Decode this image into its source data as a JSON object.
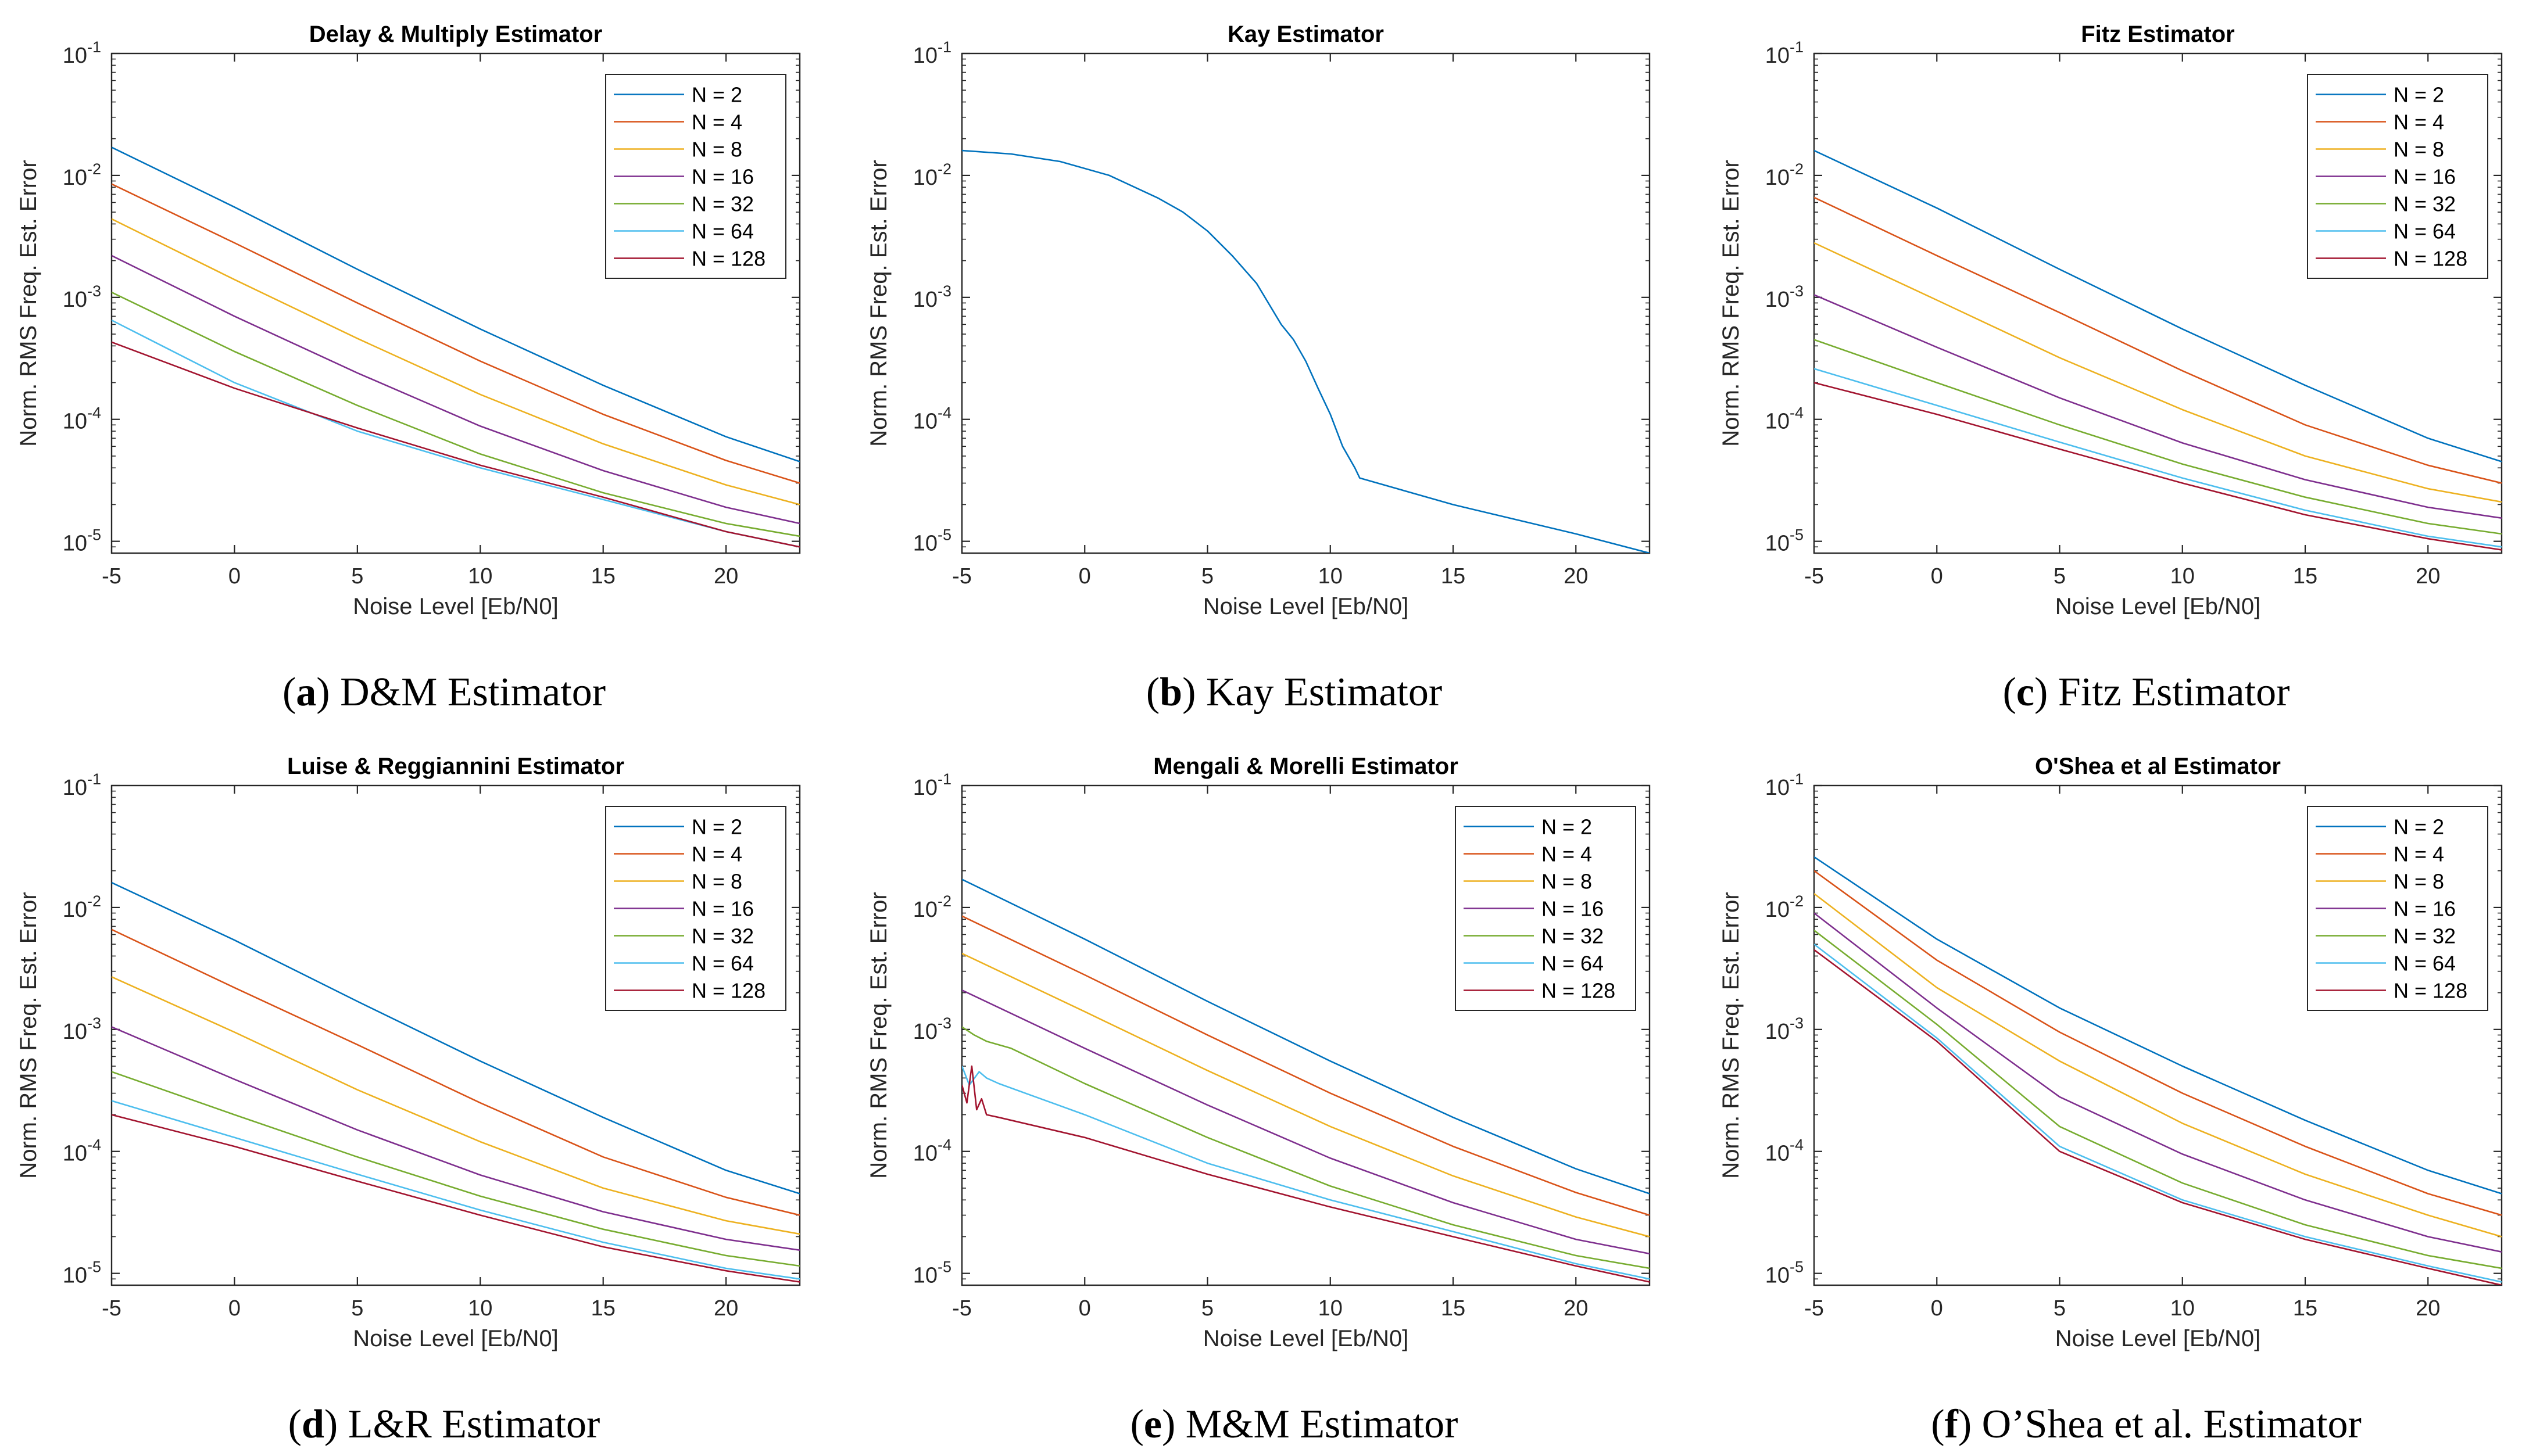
{
  "chart_data": [
    {
      "panel": "a",
      "caption_letter": "a",
      "caption_text": "D&M Estimator",
      "type": "line",
      "title": "Delay & Multiply Estimator",
      "xlabel": "Noise Level [Eb/N0]",
      "ylabel": "Norm. RMS Freq. Est. Error",
      "xlim": [
        -5,
        23
      ],
      "ylim": [
        8e-06,
        0.1
      ],
      "yscale": "log",
      "xticks": [
        -5,
        0,
        5,
        10,
        15,
        20
      ],
      "yticks": [
        -5,
        -4,
        -3,
        -2,
        -1
      ],
      "legend": "top-right",
      "series": [
        {
          "name": "N = 2",
          "color": "#0072BD",
          "x": [
            -5,
            0,
            5,
            10,
            15,
            20,
            23
          ],
          "y": [
            0.017,
            0.0055,
            0.0017,
            0.00055,
            0.00019,
            7.2e-05,
            4.5e-05
          ]
        },
        {
          "name": "N = 4",
          "color": "#D95319",
          "x": [
            -5,
            0,
            5,
            10,
            15,
            20,
            23
          ],
          "y": [
            0.0085,
            0.0028,
            0.0009,
            0.0003,
            0.00011,
            4.6e-05,
            3e-05
          ]
        },
        {
          "name": "N = 8",
          "color": "#EDB120",
          "x": [
            -5,
            0,
            5,
            10,
            15,
            20,
            23
          ],
          "y": [
            0.0044,
            0.0014,
            0.00046,
            0.00016,
            6.3e-05,
            2.9e-05,
            2e-05
          ]
        },
        {
          "name": "N = 16",
          "color": "#7E2F8E",
          "x": [
            -5,
            0,
            5,
            10,
            15,
            20,
            23
          ],
          "y": [
            0.0022,
            0.0007,
            0.00024,
            8.8e-05,
            3.8e-05,
            1.9e-05,
            1.4e-05
          ]
        },
        {
          "name": "N = 32",
          "color": "#77AC30",
          "x": [
            -5,
            0,
            5,
            10,
            15,
            20,
            23
          ],
          "y": [
            0.0011,
            0.00036,
            0.00013,
            5.2e-05,
            2.5e-05,
            1.4e-05,
            1.1e-05
          ]
        },
        {
          "name": "N = 64",
          "color": "#4DBEEE",
          "x": [
            -5,
            0,
            5,
            10,
            15,
            20,
            23
          ],
          "y": [
            0.00065,
            0.0002,
            8e-05,
            4e-05,
            2.2e-05,
            1.2e-05,
            9e-06
          ]
        },
        {
          "name": "N = 128",
          "color": "#A2142F",
          "x": [
            -5,
            0,
            5,
            10,
            15,
            20,
            23
          ],
          "y": [
            0.00043,
            0.00018,
            8.5e-05,
            4.2e-05,
            2.3e-05,
            1.2e-05,
            9e-06
          ]
        }
      ]
    },
    {
      "panel": "b",
      "caption_letter": "b",
      "caption_text": "Kay Estimator",
      "type": "line",
      "title": "Kay Estimator",
      "xlabel": "Noise Level [Eb/N0]",
      "ylabel": "Norm. RMS Freq. Est. Error",
      "xlim": [
        -5,
        23
      ],
      "ylim": [
        8e-06,
        0.1
      ],
      "yscale": "log",
      "xticks": [
        -5,
        0,
        5,
        10,
        15,
        20
      ],
      "yticks": [
        -5,
        -4,
        -3,
        -2,
        -1
      ],
      "legend": "none",
      "series": [
        {
          "name": "Kay",
          "color": "#0072BD",
          "x": [
            -5,
            -3,
            -1,
            1,
            3,
            4,
            5,
            6,
            7,
            8,
            8.5,
            9,
            9.5,
            10,
            10.5,
            11,
            11.2,
            15,
            20,
            23
          ],
          "y": [
            0.016,
            0.015,
            0.013,
            0.01,
            0.0065,
            0.005,
            0.0035,
            0.0022,
            0.0013,
            0.0006,
            0.00045,
            0.0003,
            0.00018,
            0.00011,
            6e-05,
            4e-05,
            3.3e-05,
            2e-05,
            1.15e-05,
            8e-06
          ]
        }
      ]
    },
    {
      "panel": "c",
      "caption_letter": "c",
      "caption_text": "Fitz Estimator",
      "type": "line",
      "title": "Fitz Estimator",
      "xlabel": "Noise Level [Eb/N0]",
      "ylabel": "Norm. RMS Freq. Est. Error",
      "xlim": [
        -5,
        23
      ],
      "ylim": [
        8e-06,
        0.1
      ],
      "yscale": "log",
      "xticks": [
        -5,
        0,
        5,
        10,
        15,
        20
      ],
      "yticks": [
        -5,
        -4,
        -3,
        -2,
        -1
      ],
      "legend": "top-right",
      "series": [
        {
          "name": "N = 2",
          "color": "#0072BD",
          "x": [
            -5,
            0,
            5,
            10,
            15,
            20,
            23
          ],
          "y": [
            0.016,
            0.0054,
            0.0017,
            0.00055,
            0.00019,
            7e-05,
            4.5e-05
          ]
        },
        {
          "name": "N = 4",
          "color": "#D95319",
          "x": [
            -5,
            0,
            5,
            10,
            15,
            20,
            23
          ],
          "y": [
            0.0066,
            0.0022,
            0.00075,
            0.00025,
            9e-05,
            4.2e-05,
            3e-05
          ]
        },
        {
          "name": "N = 8",
          "color": "#EDB120",
          "x": [
            -5,
            0,
            5,
            10,
            15,
            20,
            23
          ],
          "y": [
            0.0028,
            0.00095,
            0.00032,
            0.00012,
            5e-05,
            2.7e-05,
            2.1e-05
          ]
        },
        {
          "name": "N = 16",
          "color": "#7E2F8E",
          "x": [
            -5,
            0,
            5,
            10,
            15,
            20,
            23
          ],
          "y": [
            0.00105,
            0.00039,
            0.00015,
            6.4e-05,
            3.2e-05,
            1.9e-05,
            1.55e-05
          ]
        },
        {
          "name": "N = 32",
          "color": "#77AC30",
          "x": [
            -5,
            0,
            5,
            10,
            15,
            20,
            23
          ],
          "y": [
            0.00045,
            0.0002,
            9e-05,
            4.3e-05,
            2.3e-05,
            1.4e-05,
            1.15e-05
          ]
        },
        {
          "name": "N = 64",
          "color": "#4DBEEE",
          "x": [
            -5,
            0,
            5,
            10,
            15,
            20,
            23
          ],
          "y": [
            0.00026,
            0.00013,
            6.5e-05,
            3.3e-05,
            1.8e-05,
            1.1e-05,
            9e-06
          ]
        },
        {
          "name": "N = 128",
          "color": "#A2142F",
          "x": [
            -5,
            0,
            5,
            10,
            15,
            20,
            23
          ],
          "y": [
            0.0002,
            0.00011,
            5.7e-05,
            3e-05,
            1.65e-05,
            1.05e-05,
            8.5e-06
          ]
        }
      ]
    },
    {
      "panel": "d",
      "caption_letter": "d",
      "caption_text": "L&R Estimator",
      "type": "line",
      "title": "Luise & Reggiannini Estimator",
      "xlabel": "Noise Level [Eb/N0]",
      "ylabel": "Norm. RMS Freq. Est. Error",
      "xlim": [
        -5,
        23
      ],
      "ylim": [
        8e-06,
        0.1
      ],
      "yscale": "log",
      "xticks": [
        -5,
        0,
        5,
        10,
        15,
        20
      ],
      "yticks": [
        -5,
        -4,
        -3,
        -2,
        -1
      ],
      "legend": "top-right",
      "series": [
        {
          "name": "N = 2",
          "color": "#0072BD",
          "x": [
            -5,
            0,
            5,
            10,
            15,
            20,
            23
          ],
          "y": [
            0.016,
            0.0054,
            0.0017,
            0.00055,
            0.00019,
            7e-05,
            4.5e-05
          ]
        },
        {
          "name": "N = 4",
          "color": "#D95319",
          "x": [
            -5,
            0,
            5,
            10,
            15,
            20,
            23
          ],
          "y": [
            0.0066,
            0.0022,
            0.00075,
            0.00025,
            9e-05,
            4.2e-05,
            3e-05
          ]
        },
        {
          "name": "N = 8",
          "color": "#EDB120",
          "x": [
            -5,
            0,
            5,
            10,
            15,
            20,
            23
          ],
          "y": [
            0.0027,
            0.00095,
            0.00032,
            0.00012,
            5e-05,
            2.7e-05,
            2.1e-05
          ]
        },
        {
          "name": "N = 16",
          "color": "#7E2F8E",
          "x": [
            -5,
            0,
            5,
            10,
            15,
            20,
            23
          ],
          "y": [
            0.00105,
            0.00039,
            0.00015,
            6.4e-05,
            3.2e-05,
            1.9e-05,
            1.55e-05
          ]
        },
        {
          "name": "N = 32",
          "color": "#77AC30",
          "x": [
            -5,
            0,
            5,
            10,
            15,
            20,
            23
          ],
          "y": [
            0.00045,
            0.0002,
            9e-05,
            4.3e-05,
            2.3e-05,
            1.4e-05,
            1.15e-05
          ]
        },
        {
          "name": "N = 64",
          "color": "#4DBEEE",
          "x": [
            -5,
            0,
            5,
            10,
            15,
            20,
            23
          ],
          "y": [
            0.00026,
            0.00013,
            6.5e-05,
            3.3e-05,
            1.8e-05,
            1.1e-05,
            9e-06
          ]
        },
        {
          "name": "N = 128",
          "color": "#A2142F",
          "x": [
            -5,
            0,
            5,
            10,
            15,
            20,
            23
          ],
          "y": [
            0.0002,
            0.00011,
            5.7e-05,
            3e-05,
            1.65e-05,
            1.05e-05,
            8.5e-06
          ]
        }
      ]
    },
    {
      "panel": "e",
      "caption_letter": "e",
      "caption_text": "M&M Estimator",
      "type": "line",
      "title": "Mengali & Morelli Estimator",
      "xlabel": "Noise Level [Eb/N0]",
      "ylabel": "Norm. RMS Freq. Est. Error",
      "xlim": [
        -5,
        23
      ],
      "ylim": [
        8e-06,
        0.1
      ],
      "yscale": "log",
      "xticks": [
        -5,
        0,
        5,
        10,
        15,
        20
      ],
      "yticks": [
        -5,
        -4,
        -3,
        -2,
        -1
      ],
      "legend": "top-right",
      "series": [
        {
          "name": "N = 2",
          "color": "#0072BD",
          "x": [
            -5,
            0,
            5,
            10,
            15,
            20,
            23
          ],
          "y": [
            0.017,
            0.0055,
            0.0017,
            0.00055,
            0.00019,
            7.2e-05,
            4.5e-05
          ]
        },
        {
          "name": "N = 4",
          "color": "#D95319",
          "x": [
            -5,
            0,
            5,
            10,
            15,
            20,
            23
          ],
          "y": [
            0.0085,
            0.0028,
            0.0009,
            0.0003,
            0.00011,
            4.6e-05,
            3e-05
          ]
        },
        {
          "name": "N = 8",
          "color": "#EDB120",
          "x": [
            -5,
            0,
            5,
            10,
            15,
            20,
            23
          ],
          "y": [
            0.0042,
            0.0014,
            0.00046,
            0.00016,
            6.3e-05,
            2.9e-05,
            2e-05
          ]
        },
        {
          "name": "N = 16",
          "color": "#7E2F8E",
          "x": [
            -5,
            0,
            5,
            10,
            15,
            20,
            23
          ],
          "y": [
            0.0021,
            0.0007,
            0.00024,
            8.8e-05,
            3.8e-05,
            1.9e-05,
            1.45e-05
          ]
        },
        {
          "name": "N = 32",
          "color": "#77AC30",
          "x": [
            -5,
            -4.5,
            -4,
            -3,
            0,
            5,
            10,
            15,
            20,
            23
          ],
          "y": [
            0.00105,
            0.0009,
            0.0008,
            0.0007,
            0.00036,
            0.00013,
            5.2e-05,
            2.5e-05,
            1.4e-05,
            1.1e-05
          ]
        },
        {
          "name": "N = 64",
          "color": "#4DBEEE",
          "x": [
            -5,
            -4.7,
            -4.3,
            -4,
            -3.5,
            0,
            5,
            10,
            15,
            20,
            23
          ],
          "y": [
            0.0005,
            0.00035,
            0.00045,
            0.0004,
            0.00036,
            0.0002,
            8e-05,
            4e-05,
            2.2e-05,
            1.2e-05,
            9e-06
          ]
        },
        {
          "name": "N = 128",
          "color": "#A2142F",
          "x": [
            -5,
            -4.8,
            -4.6,
            -4.4,
            -4.2,
            -4,
            -3.5,
            0,
            5,
            10,
            15,
            20,
            23
          ],
          "y": [
            0.00035,
            0.00025,
            0.0005,
            0.00022,
            0.00027,
            0.0002,
            0.00019,
            0.00013,
            6.5e-05,
            3.5e-05,
            2e-05,
            1.15e-05,
            8.5e-06
          ]
        }
      ]
    },
    {
      "panel": "f",
      "caption_letter": "f",
      "caption_text": "O’Shea et al. Estimator",
      "type": "line",
      "title": "O'Shea et al Estimator",
      "xlabel": "Noise Level [Eb/N0]",
      "ylabel": "Norm. RMS Freq. Est. Error",
      "xlim": [
        -5,
        23
      ],
      "ylim": [
        8e-06,
        0.1
      ],
      "yscale": "log",
      "xticks": [
        -5,
        0,
        5,
        10,
        15,
        20
      ],
      "yticks": [
        -5,
        -4,
        -3,
        -2,
        -1
      ],
      "legend": "top-right",
      "series": [
        {
          "name": "N = 2",
          "color": "#0072BD",
          "x": [
            -5,
            0,
            5,
            10,
            15,
            20,
            23
          ],
          "y": [
            0.026,
            0.0055,
            0.0015,
            0.0005,
            0.00018,
            7e-05,
            4.5e-05
          ]
        },
        {
          "name": "N = 4",
          "color": "#D95319",
          "x": [
            -5,
            0,
            5,
            10,
            15,
            20,
            23
          ],
          "y": [
            0.02,
            0.0037,
            0.00095,
            0.0003,
            0.00011,
            4.5e-05,
            3e-05
          ]
        },
        {
          "name": "N = 8",
          "color": "#EDB120",
          "x": [
            -5,
            0,
            5,
            10,
            15,
            20,
            23
          ],
          "y": [
            0.013,
            0.0022,
            0.00055,
            0.00017,
            6.5e-05,
            3e-05,
            2e-05
          ]
        },
        {
          "name": "N = 16",
          "color": "#7E2F8E",
          "x": [
            -5,
            0,
            5,
            10,
            15,
            20,
            23
          ],
          "y": [
            0.009,
            0.0015,
            0.00028,
            9.5e-05,
            4e-05,
            2e-05,
            1.5e-05
          ]
        },
        {
          "name": "N = 32",
          "color": "#77AC30",
          "x": [
            -5,
            0,
            5,
            10,
            15,
            20,
            23
          ],
          "y": [
            0.0065,
            0.0011,
            0.00016,
            5.5e-05,
            2.5e-05,
            1.4e-05,
            1.1e-05
          ]
        },
        {
          "name": "N = 64",
          "color": "#4DBEEE",
          "x": [
            -5,
            0,
            5,
            10,
            15,
            20,
            23
          ],
          "y": [
            0.005,
            0.00085,
            0.00011,
            4e-05,
            2e-05,
            1.15e-05,
            8.5e-06
          ]
        },
        {
          "name": "N = 128",
          "color": "#A2142F",
          "x": [
            -5,
            0,
            5,
            10,
            15,
            20,
            23
          ],
          "y": [
            0.0045,
            0.0008,
            0.0001,
            3.8e-05,
            1.9e-05,
            1.1e-05,
            8e-06
          ]
        }
      ]
    }
  ]
}
